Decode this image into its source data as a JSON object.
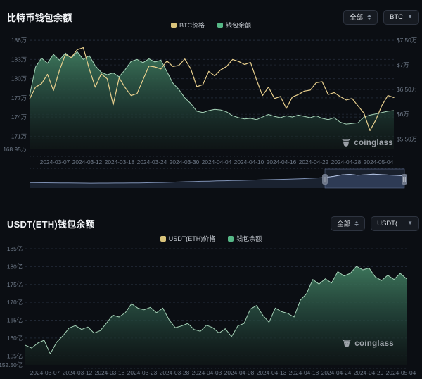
{
  "watermark": {
    "label": "coinglass"
  },
  "panels": [
    {
      "title": "比特币钱包余额",
      "filters": {
        "range_label": "全部",
        "symbol_label": "BTC"
      },
      "legend": [
        {
          "label": "BTC价格",
          "color": "#d9c37b"
        },
        {
          "label": "钱包余额",
          "color": "#56b786"
        }
      ]
    },
    {
      "title": "USDT(ETH)钱包余额",
      "filters": {
        "range_label": "全部",
        "symbol_label": "USDT(..."
      },
      "legend": [
        {
          "label": "USDT(ETH)价格",
          "color": "#d9c37b"
        },
        {
          "label": "钱包余额",
          "color": "#56b786"
        }
      ]
    }
  ],
  "chart_data": [
    {
      "type": "area",
      "title": "比特币钱包余额",
      "x_start": "2024-03-05",
      "x_end": "2024-05-06",
      "x_ticks": [
        "2024-03-07",
        "2024-03-12",
        "2024-03-18",
        "2024-03-24",
        "2024-03-30",
        "2024-04-04",
        "2024-04-10",
        "2024-04-16",
        "2024-04-22",
        "2024-04-28",
        "2024-05-04"
      ],
      "left_axis": {
        "ticks": [
          "186万",
          "183万",
          "180万",
          "177万",
          "174万",
          "171万"
        ],
        "tick_values": [
          186,
          183,
          180,
          177,
          174,
          171
        ],
        "min_label": "168.95万",
        "min": 168.95,
        "max": 187.0,
        "unit": "万 BTC"
      },
      "right_axis": {
        "ticks": [
          "$7.50万",
          "$7万",
          "$6.50万",
          "$6万",
          "$5.50万"
        ],
        "tick_values": [
          7.5,
          7.0,
          6.5,
          6.0,
          5.5
        ],
        "min": 5.29,
        "max": 7.63,
        "unit": "$万"
      },
      "grid": "dashed",
      "legend_position": "top-center",
      "series": [
        {
          "name": "钱包余额",
          "type": "area",
          "axis": "left",
          "color": "#a6d3b8",
          "values": [
            177.3,
            181.8,
            183.2,
            182.4,
            183.8,
            182.9,
            184.0,
            183.2,
            184.2,
            183.0,
            183.6,
            182.0,
            181.0,
            180.6,
            180.9,
            180.3,
            181.4,
            182.7,
            183.0,
            182.5,
            183.1,
            182.6,
            182.9,
            181.1,
            179.3,
            178.3,
            177.0,
            176.1,
            174.9,
            174.7,
            175.0,
            175.2,
            175.1,
            174.8,
            174.2,
            173.9,
            173.7,
            173.8,
            173.6,
            174.0,
            174.4,
            174.1,
            173.9,
            174.2,
            174.0,
            174.3,
            174.1,
            173.9,
            174.2,
            173.8,
            173.6,
            173.9,
            173.2,
            172.9,
            173.0,
            173.1,
            174.0,
            174.3,
            174.5,
            174.7,
            174.9,
            175.0
          ]
        },
        {
          "name": "BTC价格",
          "type": "line",
          "axis": "right",
          "color": "#e8cf8d",
          "values": [
            6.31,
            6.55,
            6.62,
            6.81,
            6.48,
            6.89,
            7.21,
            7.15,
            7.31,
            7.35,
            6.92,
            6.55,
            6.82,
            6.72,
            6.19,
            6.74,
            6.54,
            6.38,
            6.42,
            6.7,
            6.98,
            6.96,
            6.92,
            7.08,
            6.97,
            6.99,
            7.12,
            6.92,
            6.56,
            6.6,
            6.87,
            6.78,
            6.9,
            6.97,
            7.11,
            7.07,
            7.01,
            7.05,
            6.7,
            6.38,
            6.55,
            6.32,
            6.36,
            6.12,
            6.35,
            6.4,
            6.47,
            6.49,
            6.64,
            6.66,
            6.4,
            6.44,
            6.36,
            6.29,
            6.32,
            6.17,
            6.02,
            5.67,
            5.89,
            6.18,
            6.38,
            6.34
          ]
        }
      ],
      "navigator": {
        "values": [
          0.3,
          0.295,
          0.29,
          0.285,
          0.28,
          0.275,
          0.27,
          0.265,
          0.26,
          0.262,
          0.264,
          0.266,
          0.27,
          0.275,
          0.28,
          0.29,
          0.3,
          0.31,
          0.33,
          0.35,
          0.37,
          0.38,
          0.4,
          0.41,
          0.43,
          0.44,
          0.46,
          0.47,
          0.49,
          0.5,
          0.52,
          0.53,
          0.55,
          0.56,
          0.58,
          0.6,
          0.63,
          0.66,
          0.7,
          0.78,
          0.88,
          0.92,
          0.86,
          0.89,
          0.93,
          0.9,
          0.87,
          0.84,
          0.8
        ],
        "selection": [
          0.788,
          1.0
        ]
      }
    },
    {
      "type": "area",
      "title": "USDT(ETH)钱包余额",
      "x_start": "2024-03-05",
      "x_end": "2024-05-06",
      "x_ticks": [
        "2024-03-07",
        "2024-03-12",
        "2024-03-18",
        "2024-03-23",
        "2024-03-28",
        "2024-04-03",
        "2024-04-08",
        "2024-04-13",
        "2024-04-18",
        "2024-04-24",
        "2024-04-29",
        "2024-05-04"
      ],
      "left_axis": {
        "ticks": [
          "185亿",
          "180亿",
          "175亿",
          "170亿",
          "165亿",
          "160亿",
          "155亿"
        ],
        "tick_values": [
          185,
          180,
          175,
          170,
          165,
          160,
          155
        ],
        "min_label": "152.50亿",
        "min": 152.5,
        "max": 185.2,
        "unit": "亿 USDT"
      },
      "grid": "dashed",
      "legend_position": "top-center",
      "series": [
        {
          "name": "钱包余额",
          "type": "area",
          "axis": "left",
          "color": "#a6d3b8",
          "values": [
            158.0,
            157.2,
            158.6,
            159.4,
            155.6,
            158.8,
            160.6,
            162.8,
            163.5,
            162.4,
            163.1,
            161.4,
            162.1,
            164.2,
            166.4,
            165.9,
            167.1,
            169.6,
            168.4,
            167.9,
            168.6,
            167.1,
            168.4,
            165.1,
            162.9,
            163.4,
            164.1,
            162.4,
            161.9,
            163.6,
            162.9,
            161.4,
            162.6,
            160.4,
            163.4,
            164.1,
            168.1,
            169.1,
            166.4,
            164.4,
            168.4,
            167.4,
            166.9,
            165.9,
            170.6,
            172.4,
            176.4,
            175.1,
            176.6,
            175.4,
            178.6,
            177.4,
            178.1,
            180.1,
            179.1,
            179.6,
            177.1,
            176.1,
            177.6,
            176.4,
            178.1,
            176.6
          ]
        }
      ]
    }
  ]
}
